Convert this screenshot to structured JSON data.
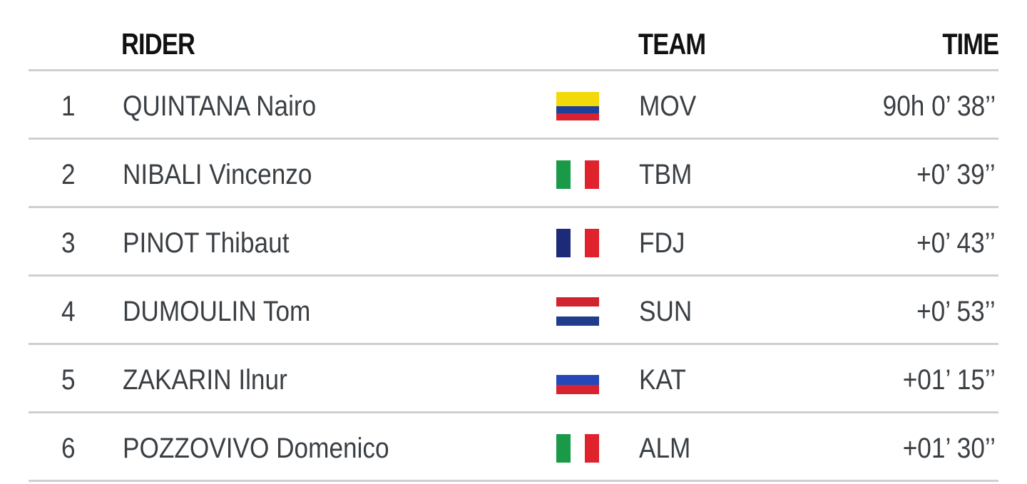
{
  "header": {
    "rider": "RIDER",
    "team": "TEAM",
    "time": "TIME"
  },
  "table": {
    "rows": [
      [
        1,
        "QUINTANA Nairo",
        "MOV",
        "90h 0’ 38’’"
      ],
      [
        2,
        "NIBALI Vincenzo",
        "TBM",
        "+0’ 39’’"
      ],
      [
        3,
        "PINOT Thibaut",
        "FDJ",
        "+0’ 43’’"
      ],
      [
        4,
        "DUMOULIN Tom",
        "SUN",
        "+0’ 53’’"
      ],
      [
        5,
        "ZAKARIN Ilnur",
        "KAT",
        "+01’ 15’’"
      ],
      [
        6,
        "POZZOVIVO Domenico",
        "ALM",
        "+01’ 30’’"
      ]
    ]
  }
}
